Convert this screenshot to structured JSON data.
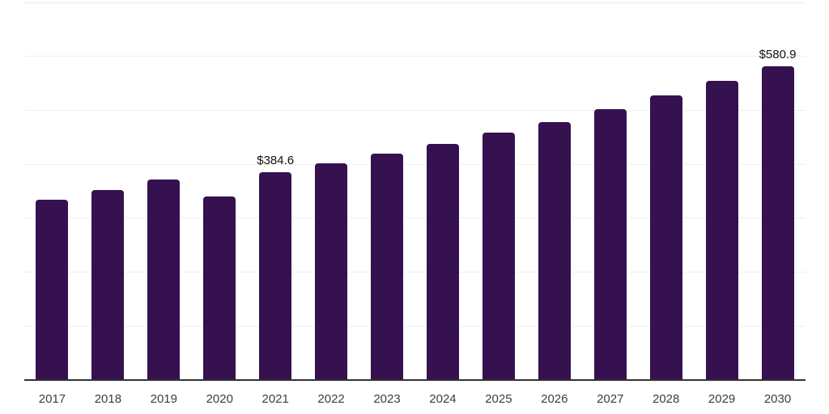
{
  "chart_data": {
    "type": "bar",
    "title": "",
    "xlabel": "",
    "ylabel": "",
    "categories": [
      "2017",
      "2018",
      "2019",
      "2020",
      "2021",
      "2022",
      "2023",
      "2024",
      "2025",
      "2026",
      "2027",
      "2028",
      "2029",
      "2030"
    ],
    "values": [
      334.8,
      352.4,
      371.8,
      339.9,
      384.6,
      401.5,
      419.0,
      437.0,
      458.0,
      477.5,
      501.5,
      527.5,
      554.5,
      580.9
    ],
    "data_labels": {
      "2021": "$384.6",
      "2030": "$580.9"
    },
    "ylim": [
      0,
      700
    ],
    "gridline_step": 100,
    "grid": "horizontal-only",
    "legend_position": "none",
    "y_axis_tick_labels": "none",
    "colors": {
      "bar": "#351150",
      "gridline": "#efefef",
      "top_gridline": "#e9e9e9",
      "axis_line": "#333333",
      "x_tick_label": "#3d3d3d",
      "data_label": "#111111",
      "background": "#ffffff"
    }
  }
}
